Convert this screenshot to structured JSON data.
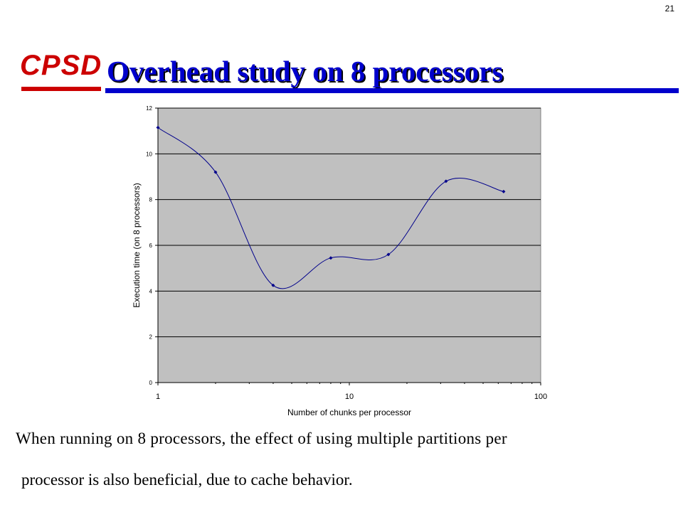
{
  "page_number": "21",
  "logo": {
    "text": "CPSD"
  },
  "title": "Overhead study on 8 processors",
  "caption": {
    "line1": "When running on 8 processors, the effect of using multiple partitions per",
    "line2": "processor is also beneficial, due to cache behavior."
  },
  "colors": {
    "title": "#0000cc",
    "logo": "#cc0000",
    "plot_bg": "#c0c0c0",
    "series": "#00008b"
  },
  "chart_data": {
    "type": "line",
    "title": "",
    "xlabel": "Number of chunks per processor",
    "ylabel": "Execution time (on 8 processors)",
    "x_scale": "log",
    "xlim": [
      1,
      100
    ],
    "ylim": [
      0,
      12
    ],
    "x_ticks": [
      "1",
      "10",
      "100"
    ],
    "y_ticks": [
      "0",
      "2",
      "4",
      "6",
      "8",
      "10",
      "12"
    ],
    "grid": "horizontal",
    "smooth": true,
    "series": [
      {
        "x": [
          1,
          2,
          4,
          8,
          16,
          32,
          64
        ],
        "y": [
          11.15,
          9.2,
          4.25,
          5.45,
          5.6,
          8.8,
          8.35
        ]
      }
    ]
  }
}
